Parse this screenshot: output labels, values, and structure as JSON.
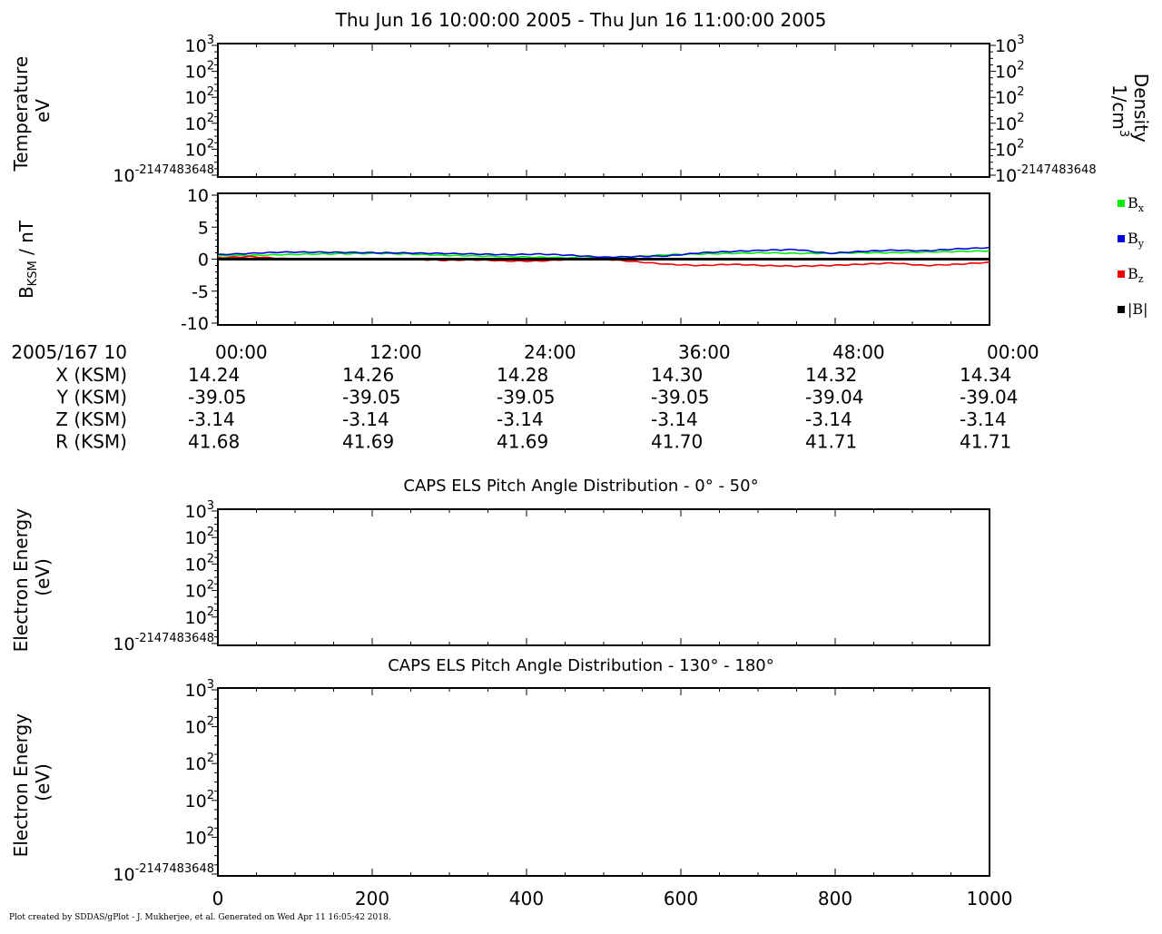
{
  "title": "Thu Jun 16 10:00:00 2005 - Thu Jun 16 11:00:00 2005",
  "footer": "Plot created by SDDAS/gPlot - J. Mukherjee, et al.  Generated on Wed Apr 11 16:05:42 2018.",
  "colors": {
    "bx": "#00ee00",
    "by": "#0000dd",
    "bz": "#ee0000",
    "b_mag": "#000000"
  },
  "chart_data": [
    {
      "type": "line",
      "id": "temperature_density",
      "ylabel": "Temperature",
      "ylabel_unit": "eV",
      "ylabel_right": "Density",
      "ylabel_right_unit": "1/cm",
      "ylabel_right_unit_sup": "3",
      "y_ticks": [
        {
          "base": "10",
          "exp": "3"
        },
        {
          "base": "10",
          "exp": "2"
        },
        {
          "base": "10",
          "exp": "2"
        },
        {
          "base": "10",
          "exp": "2"
        },
        {
          "base": "10",
          "exp": "2"
        },
        {
          "base": "10",
          "exp": "-2147483648"
        }
      ],
      "series": []
    },
    {
      "type": "line",
      "id": "magnetic_field",
      "ylabel": "B",
      "ylabel_sub": "KSM",
      "ylabel_unit": " / nT",
      "ylim": [
        -10,
        10
      ],
      "y_ticks": [
        "10",
        "5",
        "0",
        "-5",
        "-10"
      ],
      "x": [
        0,
        2.5,
        5,
        7.5,
        10,
        12.5,
        15,
        17.5,
        20,
        22.5,
        25,
        27.5,
        30,
        32.5,
        35,
        37.5,
        40,
        42.5,
        45,
        47.5,
        50,
        52.5,
        55,
        57.5,
        60
      ],
      "series": [
        {
          "name": "B",
          "sub": "x",
          "color": "#00ee00",
          "values": [
            0.5,
            0.6,
            0.7,
            0.8,
            0.85,
            0.9,
            0.8,
            0.6,
            0.5,
            0.4,
            0.3,
            0.2,
            0.2,
            0.4,
            0.7,
            0.8,
            0.9,
            1.0,
            0.9,
            0.9,
            1.0,
            1.0,
            1.1,
            1.2,
            1.3
          ]
        },
        {
          "name": "B",
          "sub": "y",
          "color": "#0000dd",
          "values": [
            0.7,
            0.9,
            1.1,
            1.1,
            1.05,
            1.0,
            0.95,
            0.9,
            0.8,
            0.7,
            0.8,
            0.6,
            0.3,
            0.4,
            0.5,
            1.0,
            1.2,
            1.4,
            1.5,
            0.9,
            1.2,
            1.4,
            1.3,
            1.6,
            1.8
          ]
        },
        {
          "name": "B",
          "sub": "z",
          "color": "#ee0000",
          "values": [
            0.2,
            0.4,
            0.1,
            0.0,
            0.0,
            0.0,
            0.0,
            -0.2,
            -0.1,
            -0.3,
            -0.3,
            0.0,
            0.0,
            -0.4,
            -0.8,
            -1.0,
            -0.8,
            -1.0,
            -1.1,
            -1.0,
            -0.8,
            -0.6,
            -1.0,
            -0.8,
            -0.5
          ]
        },
        {
          "name": "|B|",
          "sub": "",
          "color": "#000000",
          "values": [
            0,
            0,
            0,
            0,
            0,
            0,
            0,
            0,
            0,
            0,
            0,
            0,
            0,
            0,
            0,
            0,
            0,
            0,
            0,
            0,
            0,
            0,
            0,
            0,
            0
          ]
        }
      ]
    },
    {
      "type": "heatmap",
      "id": "pad_0_50",
      "title": "CAPS ELS Pitch Angle Distribution - 0° - 50°",
      "ylabel": "Electron Energy",
      "ylabel_unit": "(eV)",
      "y_ticks": [
        {
          "base": "10",
          "exp": "3"
        },
        {
          "base": "10",
          "exp": "2"
        },
        {
          "base": "10",
          "exp": "2"
        },
        {
          "base": "10",
          "exp": "2"
        },
        {
          "base": "10",
          "exp": "2"
        },
        {
          "base": "10",
          "exp": "-2147483648"
        }
      ],
      "values": []
    },
    {
      "type": "heatmap",
      "id": "pad_130_180",
      "title": "CAPS ELS Pitch Angle Distribution - 130° - 180°",
      "ylabel": "Electron Energy",
      "ylabel_unit": "(eV)",
      "y_ticks": [
        {
          "base": "10",
          "exp": "3"
        },
        {
          "base": "10",
          "exp": "2"
        },
        {
          "base": "10",
          "exp": "2"
        },
        {
          "base": "10",
          "exp": "2"
        },
        {
          "base": "10",
          "exp": "2"
        },
        {
          "base": "10",
          "exp": "-2147483648"
        }
      ],
      "x_ticks": [
        "0",
        "200",
        "400",
        "600",
        "800",
        "1000"
      ],
      "values": []
    }
  ],
  "ephemeris": {
    "label": "2005/167 10",
    "times": [
      "00:00",
      "12:00",
      "24:00",
      "36:00",
      "48:00",
      "00:00"
    ],
    "rows": [
      {
        "label": "X (KSM)",
        "values": [
          "14.24",
          "14.26",
          "14.28",
          "14.30",
          "14.32",
          "14.34"
        ]
      },
      {
        "label": "Y (KSM)",
        "values": [
          "-39.05",
          "-39.05",
          "-39.05",
          "-39.05",
          "-39.04",
          "-39.04"
        ]
      },
      {
        "label": "Z (KSM)",
        "values": [
          "-3.14",
          "-3.14",
          "-3.14",
          "-3.14",
          "-3.14",
          "-3.14"
        ]
      },
      {
        "label": "R (KSM)",
        "values": [
          "41.68",
          "41.69",
          "41.69",
          "41.70",
          "41.71",
          "41.71"
        ]
      }
    ]
  }
}
